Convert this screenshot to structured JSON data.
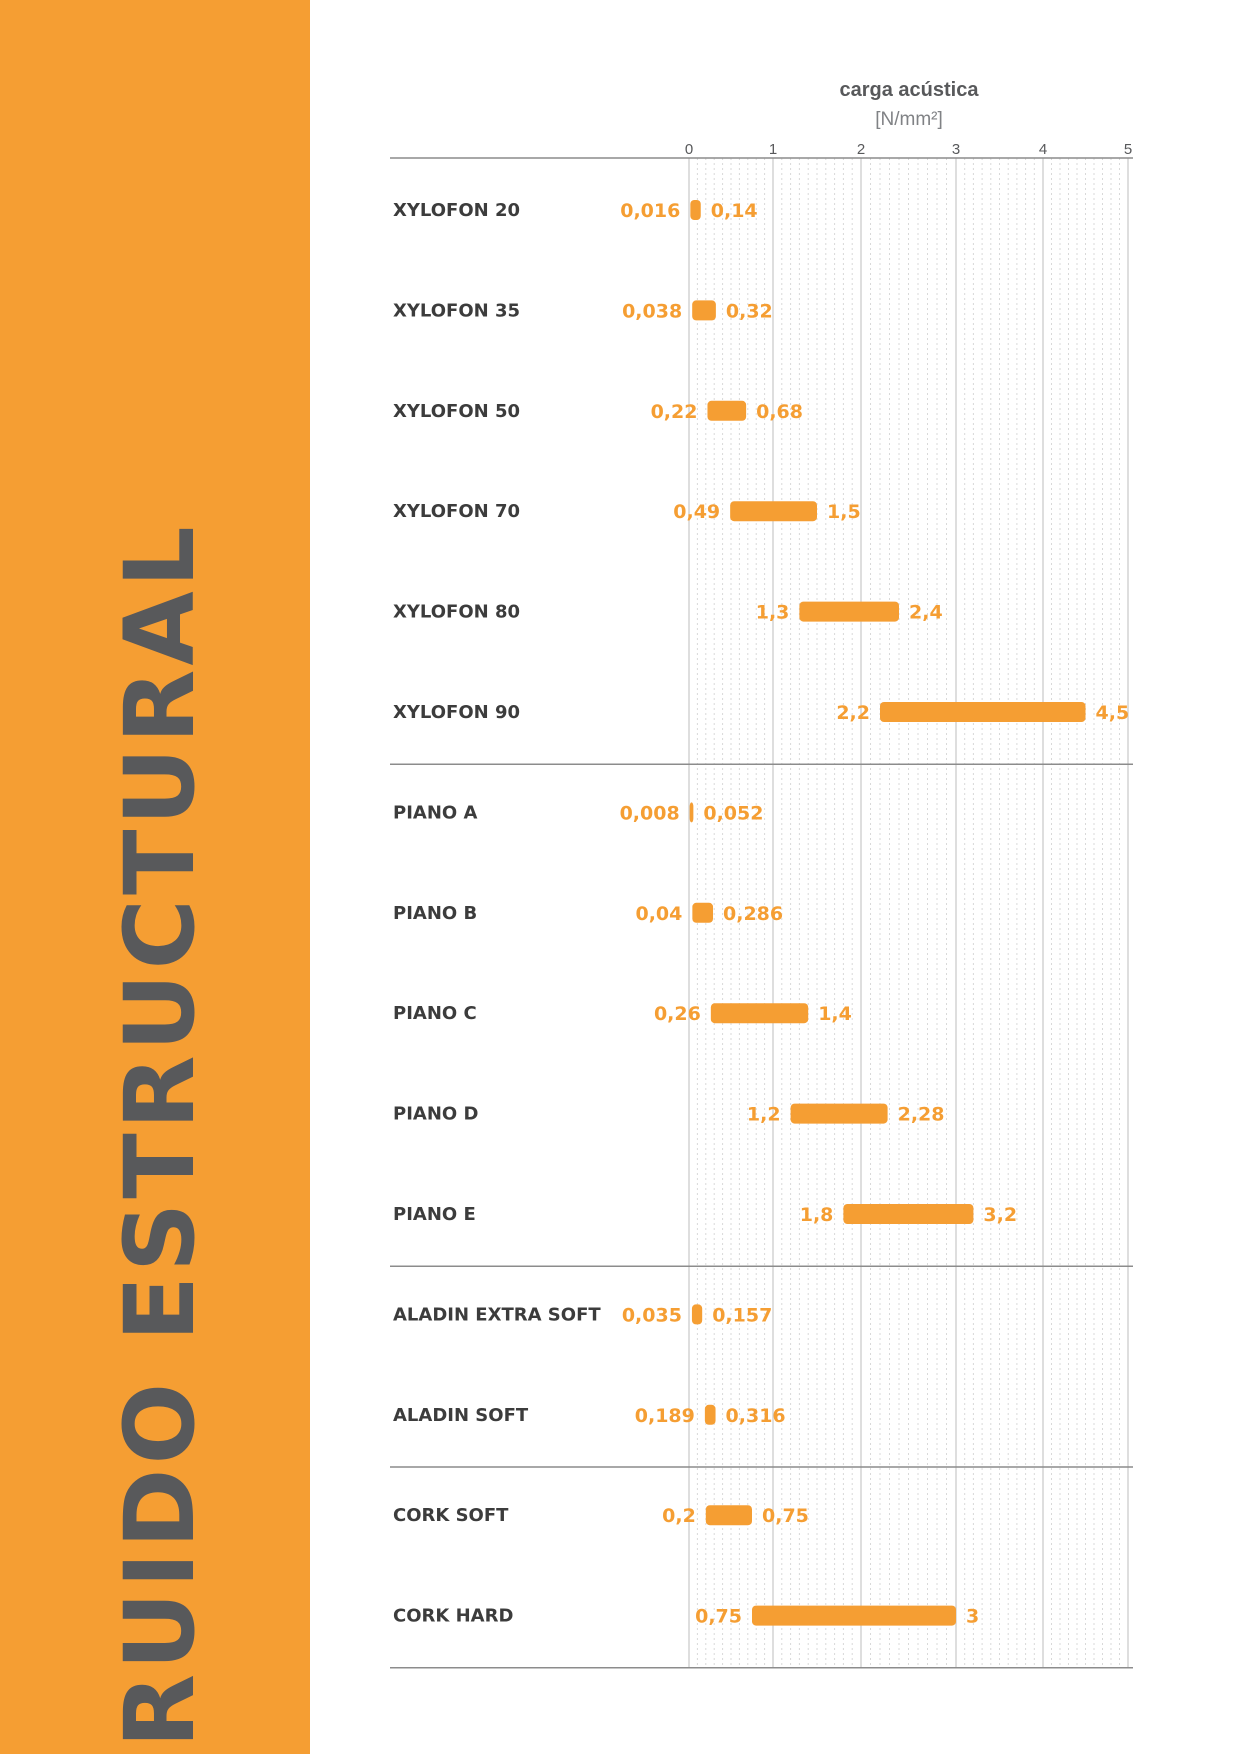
{
  "sidebar": {
    "title": "RUIDO ESTRUCTURAL",
    "background": "#f59e33",
    "title_color": "#58595b"
  },
  "chart_data": {
    "type": "range-bar",
    "title": "carga acústica",
    "unit": "[N/mm²]",
    "xlim": [
      0,
      5
    ],
    "xticks": [
      0,
      1,
      2,
      3,
      4,
      5
    ],
    "grid": true,
    "bar_color": "#f59e33",
    "label_color": "#f59e33",
    "groups": [
      {
        "rows": [
          {
            "label": "XYLOFON 20",
            "min": 0.016,
            "max": 0.14,
            "min_label": "0,016",
            "max_label": "0,14"
          },
          {
            "label": "XYLOFON 35",
            "min": 0.038,
            "max": 0.32,
            "min_label": "0,038",
            "max_label": "0,32"
          },
          {
            "label": "XYLOFON 50",
            "min": 0.22,
            "max": 0.68,
            "min_label": "0,22",
            "max_label": "0,68"
          },
          {
            "label": "XYLOFON 70",
            "min": 0.49,
            "max": 1.5,
            "min_label": "0,49",
            "max_label": "1,5"
          },
          {
            "label": "XYLOFON 80",
            "min": 1.3,
            "max": 2.4,
            "min_label": "1,3",
            "max_label": "2,4"
          },
          {
            "label": "XYLOFON 90",
            "min": 2.2,
            "max": 4.5,
            "min_label": "2,2",
            "max_label": "4,5"
          }
        ]
      },
      {
        "rows": [
          {
            "label": "PIANO A",
            "min": 0.008,
            "max": 0.052,
            "min_label": "0,008",
            "max_label": "0,052"
          },
          {
            "label": "PIANO B",
            "min": 0.04,
            "max": 0.286,
            "min_label": "0,04",
            "max_label": "0,286"
          },
          {
            "label": "PIANO C",
            "min": 0.26,
            "max": 1.4,
            "min_label": "0,26",
            "max_label": "1,4"
          },
          {
            "label": "PIANO D",
            "min": 1.2,
            "max": 2.28,
            "min_label": "1,2",
            "max_label": "2,28"
          },
          {
            "label": "PIANO E",
            "min": 1.8,
            "max": 3.2,
            "min_label": "1,8",
            "max_label": "3,2"
          }
        ]
      },
      {
        "rows": [
          {
            "label": "ALADIN EXTRA SOFT",
            "min": 0.035,
            "max": 0.157,
            "min_label": "0,035",
            "max_label": "0,157"
          },
          {
            "label": "ALADIN SOFT",
            "min": 0.189,
            "max": 0.316,
            "min_label": "0,189",
            "max_label": "0,316"
          }
        ]
      },
      {
        "rows": [
          {
            "label": "CORK SOFT",
            "min": 0.2,
            "max": 0.75,
            "min_label": "0,2",
            "max_label": "0,75"
          },
          {
            "label": "CORK HARD",
            "min": 0.75,
            "max": 3,
            "min_label": "0,75",
            "max_label": "3"
          }
        ]
      }
    ]
  }
}
